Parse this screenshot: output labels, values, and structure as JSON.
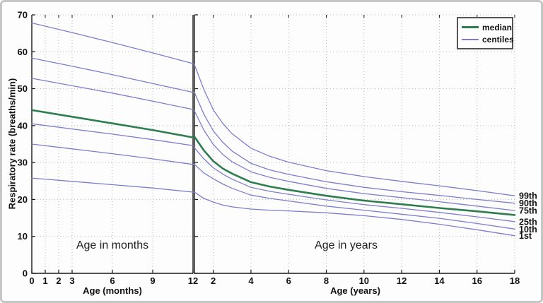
{
  "figure": {
    "ylabel": "Respiratory rate (breaths/min)",
    "colors": {
      "median": "#2e7d4f",
      "centile": "#7d7dce",
      "grid": "#b9b9b9",
      "axis": "#1a1a1a",
      "frame": "#c6c6c6",
      "text": "#111111"
    },
    "legend": {
      "items": [
        {
          "label": "median",
          "type": "median"
        },
        {
          "label": "centiles",
          "type": "centile"
        }
      ]
    },
    "right_labels": [
      "99th",
      "90th",
      "75th",
      "25th",
      "10th",
      "1st"
    ]
  },
  "chart_data": [
    {
      "type": "line",
      "title": "Age in months",
      "annotation": "Age in months",
      "xlabel": "Age (months)",
      "ylabel": "Respiratory rate (breaths/min)",
      "xlim": [
        0,
        12
      ],
      "ylim": [
        0,
        70
      ],
      "xticks": [
        0,
        1,
        2,
        3,
        6,
        9,
        12
      ],
      "yticks": [
        0,
        10,
        20,
        30,
        40,
        50,
        60,
        70
      ],
      "grid": true,
      "x": [
        0,
        3,
        6,
        9,
        12
      ],
      "series": [
        {
          "name": "1st",
          "role": "centile",
          "values": [
            25.8,
            24.9,
            24.0,
            23.1,
            22.0
          ]
        },
        {
          "name": "10th",
          "role": "centile",
          "values": [
            35.0,
            33.7,
            32.4,
            31.0,
            29.5
          ]
        },
        {
          "name": "25th",
          "role": "centile",
          "values": [
            40.5,
            39.1,
            37.7,
            36.2,
            34.6
          ]
        },
        {
          "name": "median",
          "role": "median",
          "values": [
            44.2,
            42.4,
            40.6,
            38.8,
            36.8
          ]
        },
        {
          "name": "75th",
          "role": "centile",
          "values": [
            52.8,
            50.8,
            48.8,
            46.6,
            44.4
          ]
        },
        {
          "name": "90th",
          "role": "centile",
          "values": [
            58.3,
            56.1,
            53.8,
            51.4,
            49.0
          ]
        },
        {
          "name": "99th",
          "role": "centile",
          "values": [
            67.8,
            65.2,
            62.5,
            59.7,
            56.8
          ]
        }
      ]
    },
    {
      "type": "line",
      "title": "Age in years",
      "annotation": "Age in years",
      "xlabel": "Age (years)",
      "ylabel": "Respiratory rate (breaths/min)",
      "xlim": [
        1,
        18
      ],
      "ylim": [
        0,
        70
      ],
      "xticks": [
        2,
        4,
        6,
        8,
        10,
        12,
        14,
        16,
        18
      ],
      "yticks": [
        0,
        10,
        20,
        30,
        40,
        50,
        60,
        70
      ],
      "grid": true,
      "legend_position": "top-right",
      "x": [
        1,
        1.5,
        2,
        2.5,
        3,
        4,
        5,
        6,
        8,
        10,
        12,
        14,
        16,
        18
      ],
      "series": [
        {
          "name": "1st",
          "role": "centile",
          "values": [
            22.0,
            20.3,
            19.3,
            18.5,
            18.0,
            17.4,
            17.1,
            16.9,
            16.4,
            15.6,
            14.6,
            13.3,
            11.8,
            10.2
          ]
        },
        {
          "name": "10th",
          "role": "centile",
          "values": [
            29.5,
            27.2,
            25.6,
            24.2,
            23.0,
            21.2,
            20.3,
            19.6,
            18.2,
            17.1,
            16.0,
            14.9,
            13.5,
            12.0
          ]
        },
        {
          "name": "25th",
          "role": "centile",
          "values": [
            34.0,
            31.0,
            28.6,
            26.9,
            25.5,
            23.3,
            22.2,
            21.4,
            19.9,
            18.6,
            17.6,
            16.5,
            15.3,
            14.0
          ]
        },
        {
          "name": "median",
          "role": "median",
          "values": [
            37.0,
            33.3,
            30.4,
            28.4,
            27.0,
            24.7,
            23.5,
            22.6,
            21.0,
            19.7,
            18.7,
            17.7,
            16.8,
            15.8
          ]
        },
        {
          "name": "75th",
          "role": "centile",
          "values": [
            44.0,
            38.8,
            34.9,
            32.2,
            30.2,
            27.5,
            26.0,
            24.9,
            23.0,
            21.6,
            20.5,
            19.4,
            18.2,
            17.0
          ]
        },
        {
          "name": "90th",
          "role": "centile",
          "values": [
            49.0,
            43.1,
            38.6,
            35.5,
            33.1,
            29.8,
            28.0,
            26.8,
            24.8,
            23.3,
            22.1,
            21.1,
            20.0,
            19.0
          ]
        },
        {
          "name": "99th",
          "role": "centile",
          "values": [
            56.5,
            49.8,
            44.3,
            40.6,
            37.8,
            33.9,
            31.7,
            30.1,
            27.8,
            26.2,
            24.9,
            23.7,
            22.4,
            21.0
          ]
        }
      ]
    }
  ]
}
